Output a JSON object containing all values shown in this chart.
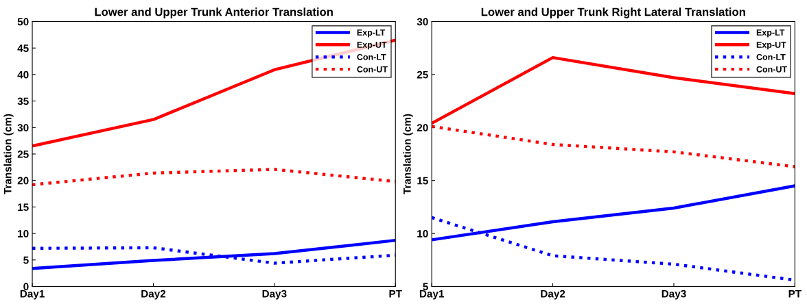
{
  "chart_data": [
    {
      "type": "line",
      "title": "Lower and Upper Trunk Anterior Translation",
      "ylabel": "Translation (cm)",
      "categories": [
        "Day1",
        "Day2",
        "Day3",
        "PT"
      ],
      "ylim": [
        0,
        50
      ],
      "yticks": [
        0,
        5,
        10,
        15,
        20,
        25,
        30,
        35,
        40,
        45,
        50
      ],
      "grid": false,
      "legend": "top right",
      "marker": "none",
      "series": [
        {
          "name": "Exp-LT",
          "color": "#0000ff",
          "line_style": "solid",
          "values": [
            3.4,
            4.9,
            6.2,
            8.7
          ]
        },
        {
          "name": "Exp-UT",
          "color": "#ff0000",
          "line_style": "solid",
          "values": [
            26.5,
            31.5,
            40.9,
            46.5
          ]
        },
        {
          "name": "Con-LT",
          "color": "#0000ff",
          "line_style": "dotted",
          "values": [
            7.2,
            7.3,
            4.4,
            5.9
          ]
        },
        {
          "name": "Con-UT",
          "color": "#ff0000",
          "line_style": "dotted",
          "values": [
            19.2,
            21.4,
            22.1,
            19.8
          ]
        }
      ]
    },
    {
      "type": "line",
      "title": "Lower and Upper Trunk Right Lateral Translation",
      "ylabel": "Translation (cm)",
      "categories": [
        "Day1",
        "Day2",
        "Day3",
        "PT"
      ],
      "ylim": [
        5,
        30
      ],
      "yticks": [
        5,
        10,
        15,
        20,
        25,
        30
      ],
      "grid": false,
      "legend": "top right",
      "marker": "none",
      "series": [
        {
          "name": "Exp-LT",
          "color": "#0000ff",
          "line_style": "solid",
          "values": [
            9.4,
            11.1,
            12.4,
            14.5
          ]
        },
        {
          "name": "Exp-UT",
          "color": "#ff0000",
          "line_style": "solid",
          "values": [
            20.4,
            26.6,
            24.7,
            23.2
          ]
        },
        {
          "name": "Con-LT",
          "color": "#0000ff",
          "line_style": "dotted",
          "values": [
            11.5,
            7.9,
            7.1,
            5.6
          ]
        },
        {
          "name": "Con-UT",
          "color": "#ff0000",
          "line_style": "dotted",
          "values": [
            20.1,
            18.4,
            17.7,
            16.3
          ]
        }
      ]
    }
  ]
}
